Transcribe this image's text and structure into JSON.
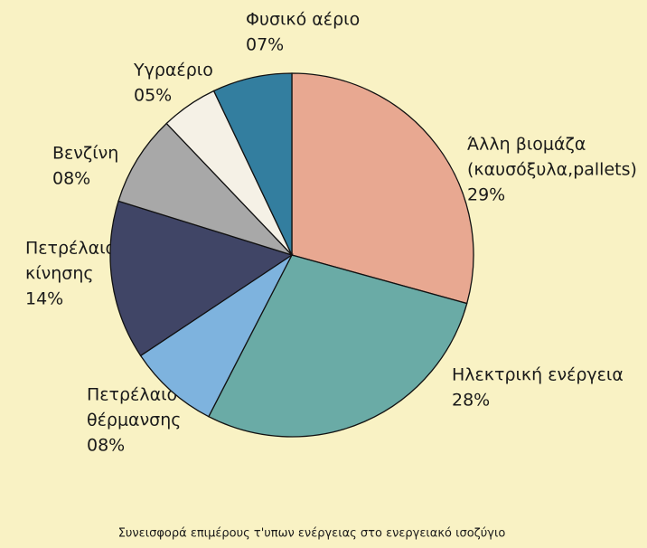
{
  "chart_data": {
    "type": "pie",
    "title": "Συνεισφορά επιμέρους τ'υπων ενέργειας στο ενεργειακό ισοζύγιο",
    "categories": [
      [
        "Άλλη βιομάζα",
        "(καυσόξυλα,pallets)"
      ],
      [
        "Ηλεκτρική ενέργεια"
      ],
      [
        "Πετρέλαιο",
        "θέρμανσης"
      ],
      [
        "Πετρέλαιο",
        "κίνησης"
      ],
      [
        "Βενζίνη"
      ],
      [
        "Υγραέριο"
      ],
      [
        "Φυσικό αέριο"
      ]
    ],
    "values": [
      29,
      28,
      8,
      14,
      8,
      5,
      7
    ],
    "value_labels": [
      "29%",
      "28%",
      "08%",
      "14%",
      "08%",
      "05%",
      "07%"
    ],
    "colors": [
      "#e8a891",
      "#6aaba6",
      "#7eb3de",
      "#404566",
      "#a8a8a8",
      "#f5f1e6",
      "#337e9f"
    ]
  }
}
